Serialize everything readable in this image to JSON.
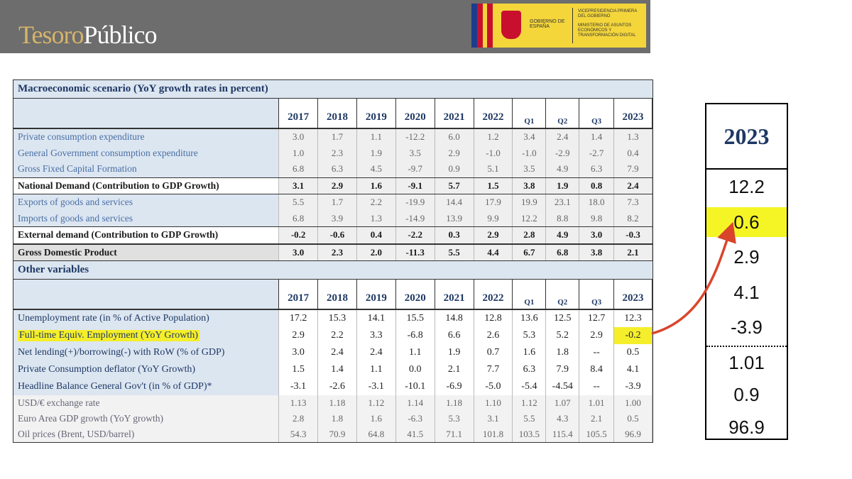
{
  "header": {
    "logo": {
      "first": "Tesoro",
      "second": "Público"
    },
    "government": {
      "name": "GOBIERNO DE ESPAÑA",
      "office": "VICEPRESIDENCIA PRIMERA DEL GOBIERNO",
      "ministry": "MINISTERIO DE ASUNTOS ECONÓMICOS Y TRANSFORMACIÓN DIGITAL"
    }
  },
  "tables": [
    {
      "title": "Macroeconomic scenario (YoY growth rates in percent)",
      "columns": [
        "2017",
        "2018",
        "2019",
        "2020",
        "2021",
        "2022",
        "Q1",
        "Q2",
        "Q3",
        "2023"
      ],
      "rows": [
        {
          "label": "Private consumption expenditure",
          "values": [
            "3.0",
            "1.7",
            "1.1",
            "-12.2",
            "6.0",
            "1.2",
            "3.4",
            "2.4",
            "1.4",
            "1.3"
          ]
        },
        {
          "label": "General Government consumption expenditure",
          "values": [
            "1.0",
            "2.3",
            "1.9",
            "3.5",
            "2.9",
            "-1.0",
            "-1.0",
            "-2.9",
            "-2.7",
            "0.4"
          ]
        },
        {
          "label": "Gross Fixed Capital Formation",
          "values": [
            "6.8",
            "6.3",
            "4.5",
            "-9.7",
            "0.9",
            "5.1",
            "3.5",
            "4.9",
            "6.3",
            "7.9"
          ]
        },
        {
          "label": "National Demand (Contribution to GDP Growth)",
          "values": [
            "3.1",
            "2.9",
            "1.6",
            "-9.1",
            "5.7",
            "1.5",
            "3.8",
            "1.9",
            "0.8",
            "2.4"
          ],
          "bold": true
        },
        {
          "label": "Exports of goods and services",
          "values": [
            "5.5",
            "1.7",
            "2.2",
            "-19.9",
            "14.4",
            "17.9",
            "19.9",
            "23.1",
            "18.0",
            "7.3"
          ]
        },
        {
          "label": "Imports of goods and services",
          "values": [
            "6.8",
            "3.9",
            "1.3",
            "-14.9",
            "13.9",
            "9.9",
            "12.2",
            "8.8",
            "9.8",
            "8.2"
          ]
        },
        {
          "label": "External demand (Contribution to GDP Growth)",
          "values": [
            "-0.2",
            "-0.6",
            "0.4",
            "-2.2",
            "0.3",
            "2.9",
            "2.8",
            "4.9",
            "3.0",
            "-0.3"
          ],
          "bold": true
        },
        {
          "label": "Gross Domestic Product",
          "values": [
            "3.0",
            "2.3",
            "2.0",
            "-11.3",
            "5.5",
            "4.4",
            "6.7",
            "6.8",
            "3.8",
            "2.1"
          ],
          "bold": true,
          "shaded": true
        }
      ]
    },
    {
      "title": "Other variables",
      "columns": [
        "2017",
        "2018",
        "2019",
        "2020",
        "2021",
        "2022",
        "Q1",
        "Q2",
        "Q3",
        "2023"
      ],
      "rows": [
        {
          "label": "Unemployment rate (in % of Active Population)",
          "values": [
            "17.2",
            "15.3",
            "14.1",
            "15.5",
            "14.8",
            "12.8",
            "13.6",
            "12.5",
            "12.7",
            "12.3"
          ]
        },
        {
          "label": "Full-time Equiv. Employment (YoY Growth)",
          "values": [
            "2.9",
            "2.2",
            "3.3",
            "-6.8",
            "6.6",
            "2.6",
            "5.3",
            "5.2",
            "2.9",
            "-0.2"
          ],
          "highlight": true
        },
        {
          "label": "Net lending(+)/borrowing(-) with RoW (% of GDP)",
          "values": [
            "3.0",
            "2.4",
            "2.4",
            "1.1",
            "1.9",
            "0.7",
            "1.6",
            "1.8",
            "--",
            "0.5"
          ]
        },
        {
          "label": "Private Consumption deflator (YoY Growth)",
          "values": [
            "1.5",
            "1.4",
            "1.1",
            "0.0",
            "2.1",
            "7.7",
            "6.3",
            "7.9",
            "8.4",
            "4.1"
          ]
        },
        {
          "label": "Headline Balance General Gov't (in % of GDP)*",
          "values": [
            "-3.1",
            "-2.6",
            "-3.1",
            "-10.1",
            "-6.9",
            "-5.0",
            "-5.4",
            "-4.54",
            "--",
            "-3.9"
          ]
        },
        {
          "label": "USD/€ exchange rate",
          "values": [
            "1.13",
            "1.18",
            "1.12",
            "1.14",
            "1.18",
            "1.10",
            "1.12",
            "1.07",
            "1.01",
            "1.00"
          ],
          "shaded": true
        },
        {
          "label": "Euro Area GDP growth (YoY growth)",
          "values": [
            "2.8",
            "1.8",
            "1.6",
            "-6.3",
            "5.3",
            "3.1",
            "5.5",
            "4.3",
            "2.1",
            "0.5"
          ],
          "shaded": true
        },
        {
          "label": "Oil prices (Brent, USD/barrel)",
          "values": [
            "54.3",
            "70.9",
            "64.8",
            "41.5",
            "71.1",
            "101.8",
            "103.5",
            "115.4",
            "105.5",
            "96.9"
          ],
          "shaded": true
        }
      ]
    }
  ],
  "sidebar": {
    "header": "2023",
    "groups": [
      [
        "12.2",
        "0.6",
        "2.9",
        "4.1",
        "-3.9"
      ],
      [
        "1.01",
        "0.9",
        "96.9"
      ]
    ],
    "highlight": {
      "group": 0,
      "index": 1
    }
  }
}
